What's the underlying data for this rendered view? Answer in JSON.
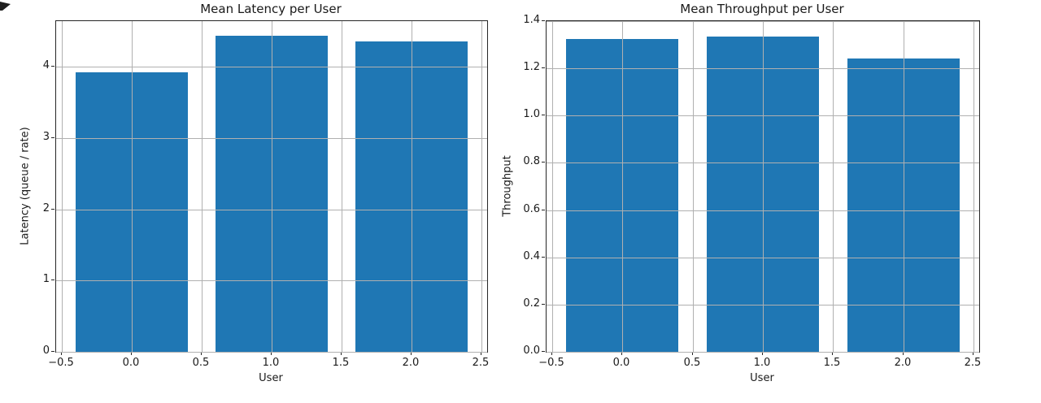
{
  "figure": {
    "background": "#ffffff",
    "bar_color": "#1f77b4",
    "grid_color": "#b0b0b0",
    "spine_color": "#262626",
    "text_color": "#1a1a1a"
  },
  "chart_data": [
    {
      "type": "bar",
      "title": "Mean Latency per User",
      "xlabel": "User",
      "ylabel": "Latency (queue / rate)",
      "categories": [
        0,
        1,
        2
      ],
      "values": [
        3.92,
        4.43,
        4.35
      ],
      "bar_width": 0.8,
      "xlim": [
        -0.54,
        2.54
      ],
      "ylim": [
        0,
        4.64
      ],
      "xticks": [
        -0.5,
        0.0,
        0.5,
        1.0,
        1.5,
        2.0,
        2.5
      ],
      "xtick_labels": [
        "−0.5",
        "0.0",
        "0.5",
        "1.0",
        "1.5",
        "2.0",
        "2.5"
      ],
      "yticks": [
        0,
        1,
        2,
        3,
        4
      ],
      "ytick_labels": [
        "0",
        "1",
        "2",
        "3",
        "4"
      ],
      "grid": true,
      "grid_on_top": true,
      "legend": null
    },
    {
      "type": "bar",
      "title": "Mean Throughput per User",
      "xlabel": "User",
      "ylabel": "Throughput",
      "categories": [
        0,
        1,
        2
      ],
      "values": [
        1.326,
        1.335,
        1.242
      ],
      "bar_width": 0.8,
      "xlim": [
        -0.54,
        2.54
      ],
      "ylim": [
        0,
        1.4
      ],
      "xticks": [
        -0.5,
        0.0,
        0.5,
        1.0,
        1.5,
        2.0,
        2.5
      ],
      "xtick_labels": [
        "−0.5",
        "0.0",
        "0.5",
        "1.0",
        "1.5",
        "2.0",
        "2.5"
      ],
      "yticks": [
        0.0,
        0.2,
        0.4,
        0.6,
        0.8,
        1.0,
        1.2,
        1.4
      ],
      "ytick_labels": [
        "0.0",
        "0.2",
        "0.4",
        "0.6",
        "0.8",
        "1.0",
        "1.2",
        "1.4"
      ],
      "grid": true,
      "grid_on_top": true,
      "legend": null
    }
  ]
}
